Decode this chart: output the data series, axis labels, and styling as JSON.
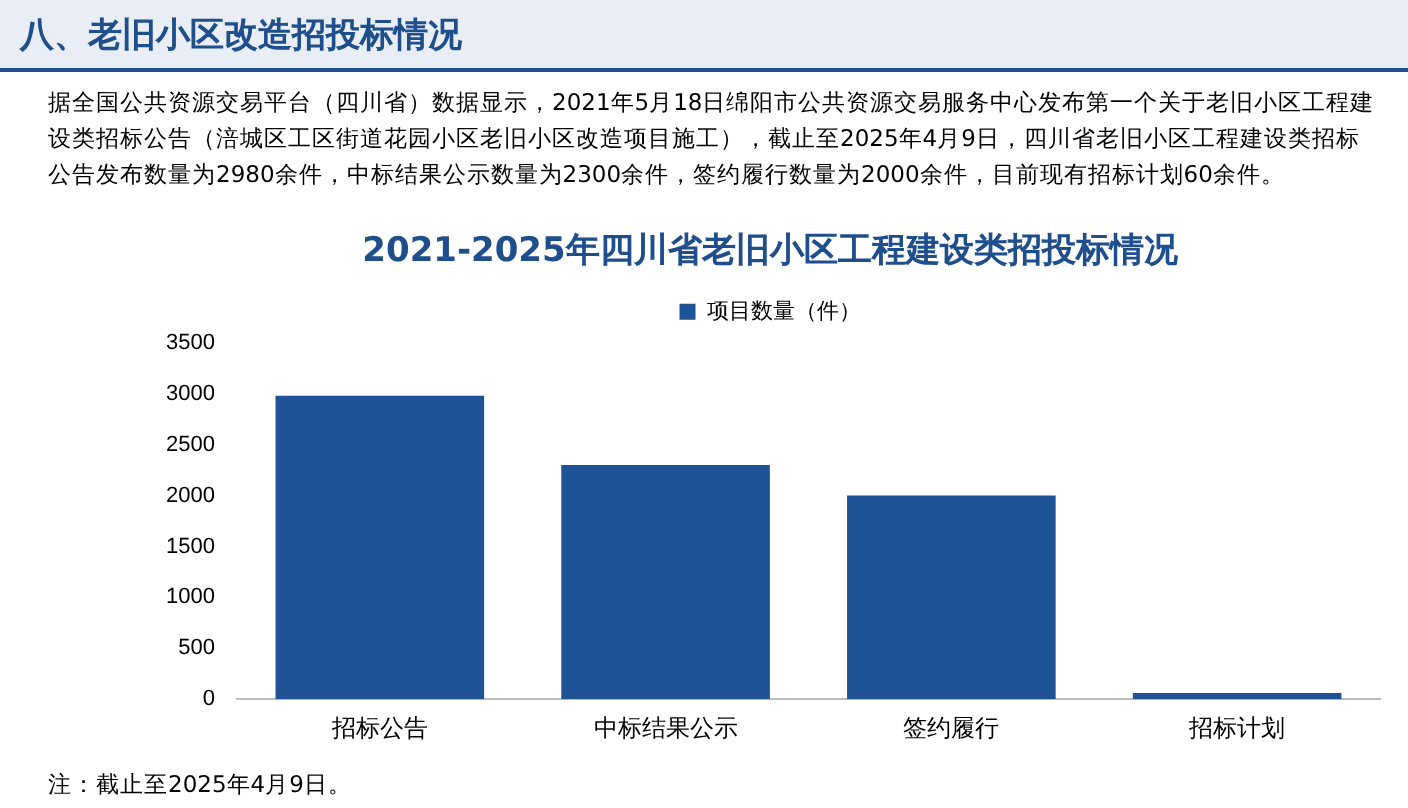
{
  "chart_data": {
    "type": "bar",
    "title": "2021-2025年四川省老旧小区工程建设类招投标情况",
    "annotations": [
      "八、老旧小区改造招投标情况",
      "据全国公共资源交易平台（四川省）数据显示，2021年5月18日绵阳市公共资源交易服务中心发布第一个关于老旧小区工程建设类招标公告（涪城区工区街道花园小区老旧小区改造项目施工），截止至2025年4月9日，四川省老旧小区工程建设类招标公告发布数量为2980余件，中标结果公示数量为2300余件，签约履行数量为2000余件，目前现有招标计划60余件。",
      "注：截止至2025年4月9日。"
    ],
    "categories": [
      "招标公告",
      "中标结果公示",
      "签约履行",
      "招标计划"
    ],
    "series": [
      {
        "name": "项目数量（件）",
        "color": "#1f5396",
        "values": [
          2980,
          2300,
          2000,
          60
        ]
      }
    ],
    "ylim": [
      0,
      3500
    ],
    "yticks": [
      0,
      500,
      1000,
      1500,
      2000,
      2500,
      3000,
      3500
    ],
    "grid": false,
    "legend": "top"
  }
}
